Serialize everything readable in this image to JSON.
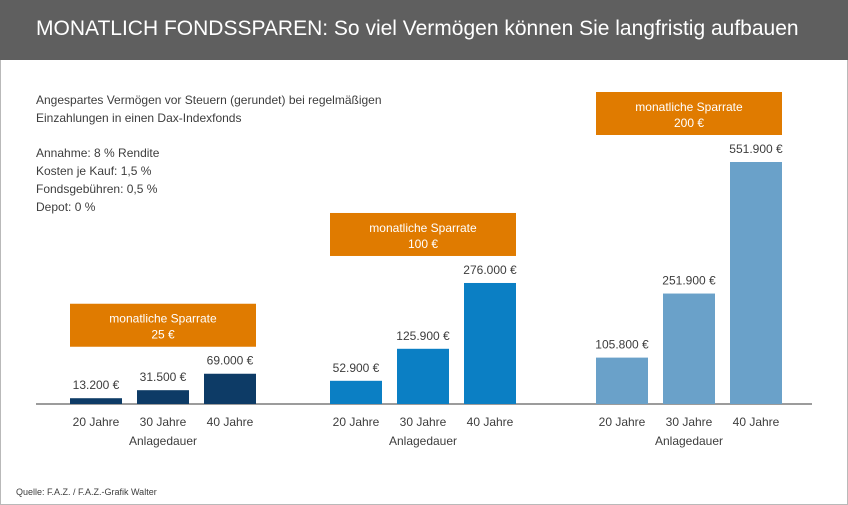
{
  "title": "MONATLICH FONDSSPAREN: So viel Vermögen können Sie langfristig aufbauen",
  "notes": {
    "description_line1": "Angespartes Vermögen vor Steuern (gerundet) bei regelmäßigen",
    "description_line2": "Einzahlungen in einen Dax-Indexfonds",
    "assumptions": [
      "Annahme: 8 % Rendite",
      "Kosten je Kauf: 1,5 %",
      "Fondsgebühren: 0,5 %",
      "Depot: 0 %"
    ]
  },
  "source": "Quelle: F.A.Z. / F.A.Z.-Grafik Walter",
  "colors": {
    "header": "#5f5f5f",
    "badge": "#e07b00",
    "series": [
      "#0d3b66",
      "#0b7fc4",
      "#6aa1c9"
    ]
  },
  "chart_data": {
    "type": "bar",
    "categories": [
      "20 Jahre",
      "30 Jahre",
      "40 Jahre"
    ],
    "xlabel": "Anlagedauer",
    "ylim": [
      0,
      551900
    ],
    "series": [
      {
        "name": "monatliche Sparrate",
        "rate": "25 €",
        "values": [
          13200,
          31500,
          69000
        ],
        "labels": [
          "13.200 €",
          "31.500 €",
          "69.000 €"
        ]
      },
      {
        "name": "monatliche Sparrate",
        "rate": "100 €",
        "values": [
          52900,
          125900,
          276000
        ],
        "labels": [
          "52.900 €",
          "125.900 €",
          "276.000 €"
        ]
      },
      {
        "name": "monatliche Sparrate",
        "rate": "200 €",
        "values": [
          105800,
          251900,
          551900
        ],
        "labels": [
          "105.800 €",
          "251.900 €",
          "551.900 €"
        ]
      }
    ]
  }
}
